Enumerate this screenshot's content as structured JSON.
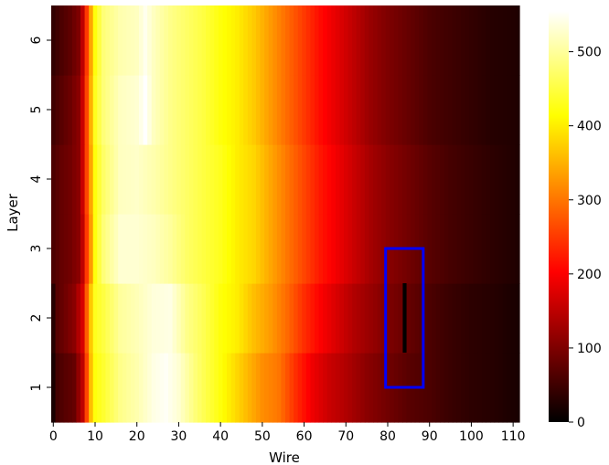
{
  "chart_data": {
    "type": "heatmap",
    "title": "",
    "xlabel": "Wire",
    "ylabel": "Layer",
    "x_ticks": [
      "0",
      "10",
      "20",
      "30",
      "40",
      "50",
      "60",
      "70",
      "80",
      "90",
      "100",
      "110"
    ],
    "y_ticks": [
      "1",
      "2",
      "3",
      "4",
      "5",
      "6"
    ],
    "colorbar_ticks": [
      "0",
      "100",
      "200",
      "300",
      "400",
      "500"
    ],
    "colormap": "hot",
    "value_range": [
      0,
      555
    ],
    "wires": 112,
    "layers": 6,
    "layer_profiles": [
      {
        "layer": 1,
        "profile": [
          [
            0,
            20
          ],
          [
            1,
            55
          ],
          [
            3,
            70
          ],
          [
            5,
            80
          ],
          [
            7,
            150
          ],
          [
            8,
            260
          ],
          [
            9,
            360
          ],
          [
            10,
            420
          ],
          [
            12,
            440
          ],
          [
            16,
            490
          ],
          [
            20,
            510
          ],
          [
            24,
            540
          ],
          [
            27,
            550
          ],
          [
            30,
            530
          ],
          [
            34,
            480
          ],
          [
            38,
            440
          ],
          [
            42,
            400
          ],
          [
            46,
            360
          ],
          [
            50,
            320
          ],
          [
            54,
            300
          ],
          [
            58,
            240
          ],
          [
            62,
            190
          ],
          [
            66,
            160
          ],
          [
            70,
            140
          ],
          [
            75,
            110
          ],
          [
            80,
            90
          ],
          [
            85,
            70
          ],
          [
            90,
            60
          ],
          [
            95,
            45
          ],
          [
            100,
            35
          ],
          [
            105,
            30
          ],
          [
            111,
            20
          ]
        ]
      },
      {
        "layer": 2,
        "profile": [
          [
            0,
            30
          ],
          [
            1,
            70
          ],
          [
            3,
            90
          ],
          [
            5,
            110
          ],
          [
            7,
            170
          ],
          [
            8,
            280
          ],
          [
            9,
            370
          ],
          [
            10,
            430
          ],
          [
            12,
            450
          ],
          [
            16,
            500
          ],
          [
            20,
            515
          ],
          [
            24,
            535
          ],
          [
            28,
            540
          ],
          [
            32,
            490
          ],
          [
            36,
            460
          ],
          [
            40,
            420
          ],
          [
            44,
            400
          ],
          [
            48,
            360
          ],
          [
            52,
            330
          ],
          [
            56,
            290
          ],
          [
            60,
            240
          ],
          [
            64,
            200
          ],
          [
            68,
            170
          ],
          [
            72,
            140
          ],
          [
            76,
            120
          ],
          [
            80,
            100
          ],
          [
            85,
            80
          ],
          [
            90,
            60
          ],
          [
            95,
            45
          ],
          [
            100,
            35
          ],
          [
            105,
            30
          ],
          [
            111,
            20
          ]
        ]
      },
      {
        "layer": 3,
        "profile": [
          [
            0,
            60
          ],
          [
            2,
            80
          ],
          [
            4,
            90
          ],
          [
            6,
            110
          ],
          [
            7,
            150
          ],
          [
            8,
            250
          ],
          [
            9,
            330
          ],
          [
            10,
            420
          ],
          [
            12,
            480
          ],
          [
            16,
            530
          ],
          [
            20,
            530
          ],
          [
            24,
            520
          ],
          [
            28,
            500
          ],
          [
            32,
            470
          ],
          [
            36,
            450
          ],
          [
            40,
            430
          ],
          [
            44,
            400
          ],
          [
            48,
            380
          ],
          [
            52,
            340
          ],
          [
            56,
            300
          ],
          [
            60,
            260
          ],
          [
            64,
            220
          ],
          [
            68,
            190
          ],
          [
            72,
            160
          ],
          [
            76,
            130
          ],
          [
            80,
            110
          ],
          [
            85,
            90
          ],
          [
            90,
            70
          ],
          [
            95,
            55
          ],
          [
            100,
            45
          ],
          [
            105,
            35
          ],
          [
            111,
            25
          ]
        ]
      },
      {
        "layer": 4,
        "profile": [
          [
            0,
            60
          ],
          [
            2,
            80
          ],
          [
            4,
            90
          ],
          [
            6,
            110
          ],
          [
            7,
            160
          ],
          [
            8,
            260
          ],
          [
            9,
            340
          ],
          [
            10,
            420
          ],
          [
            12,
            470
          ],
          [
            16,
            520
          ],
          [
            20,
            525
          ],
          [
            24,
            510
          ],
          [
            28,
            490
          ],
          [
            32,
            470
          ],
          [
            36,
            450
          ],
          [
            40,
            430
          ],
          [
            44,
            400
          ],
          [
            48,
            380
          ],
          [
            52,
            340
          ],
          [
            56,
            300
          ],
          [
            60,
            260
          ],
          [
            64,
            220
          ],
          [
            68,
            190
          ],
          [
            72,
            160
          ],
          [
            76,
            130
          ],
          [
            80,
            110
          ],
          [
            85,
            90
          ],
          [
            90,
            70
          ],
          [
            95,
            55
          ],
          [
            100,
            45
          ],
          [
            105,
            35
          ],
          [
            111,
            25
          ]
        ]
      },
      {
        "layer": 5,
        "profile": [
          [
            0,
            50
          ],
          [
            2,
            70
          ],
          [
            4,
            85
          ],
          [
            6,
            110
          ],
          [
            7,
            160
          ],
          [
            8,
            260
          ],
          [
            9,
            350
          ],
          [
            10,
            430
          ],
          [
            12,
            480
          ],
          [
            16,
            520
          ],
          [
            20,
            530
          ],
          [
            22,
            555
          ],
          [
            24,
            520
          ],
          [
            28,
            490
          ],
          [
            32,
            470
          ],
          [
            36,
            450
          ],
          [
            40,
            420
          ],
          [
            44,
            400
          ],
          [
            48,
            370
          ],
          [
            52,
            330
          ],
          [
            56,
            290
          ],
          [
            60,
            250
          ],
          [
            64,
            210
          ],
          [
            68,
            180
          ],
          [
            72,
            150
          ],
          [
            76,
            120
          ],
          [
            80,
            100
          ],
          [
            85,
            80
          ],
          [
            90,
            60
          ],
          [
            95,
            50
          ],
          [
            100,
            40
          ],
          [
            105,
            30
          ],
          [
            111,
            25
          ]
        ]
      },
      {
        "layer": 6,
        "profile": [
          [
            0,
            40
          ],
          [
            2,
            60
          ],
          [
            4,
            75
          ],
          [
            6,
            100
          ],
          [
            7,
            150
          ],
          [
            8,
            250
          ],
          [
            9,
            340
          ],
          [
            10,
            420
          ],
          [
            12,
            480
          ],
          [
            16,
            510
          ],
          [
            20,
            520
          ],
          [
            22,
            545
          ],
          [
            24,
            520
          ],
          [
            28,
            490
          ],
          [
            32,
            470
          ],
          [
            36,
            450
          ],
          [
            40,
            420
          ],
          [
            44,
            400
          ],
          [
            48,
            370
          ],
          [
            52,
            330
          ],
          [
            56,
            290
          ],
          [
            60,
            250
          ],
          [
            64,
            210
          ],
          [
            68,
            180
          ],
          [
            72,
            150
          ],
          [
            76,
            120
          ],
          [
            80,
            100
          ],
          [
            85,
            80
          ],
          [
            90,
            60
          ],
          [
            95,
            50
          ],
          [
            100,
            40
          ],
          [
            105,
            30
          ],
          [
            111,
            25
          ]
        ]
      }
    ],
    "dead_cells": [
      {
        "layer": 2,
        "wire": 84,
        "value": 0
      }
    ],
    "highlight_box": {
      "color": "#0000ff",
      "x_range": [
        80,
        89
      ],
      "layer_range": [
        1,
        3
      ]
    }
  }
}
